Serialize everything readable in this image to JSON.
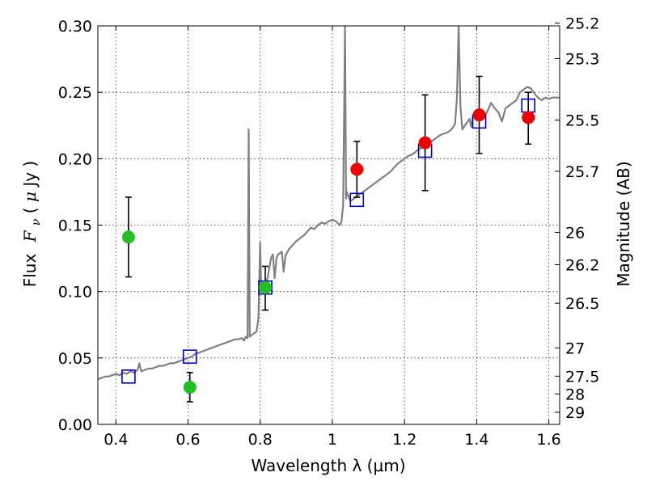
{
  "chart_data": {
    "type": "scatter",
    "x_range": [
      0.35,
      1.63
    ],
    "y_range": [
      0.0,
      0.3
    ],
    "grid": true,
    "x_ticks": [
      0.4,
      0.6,
      0.8,
      1.0,
      1.2,
      1.4,
      1.6
    ],
    "x_tick_labels": [
      "0.4",
      "0.6",
      "0.8",
      "1",
      "1.2",
      "1.4",
      "1.6"
    ],
    "y_ticks": [
      0.0,
      0.05,
      0.1,
      0.15,
      0.2,
      0.25,
      0.3
    ],
    "y_tick_labels": [
      "0.00",
      "0.05",
      "0.10",
      "0.15",
      "0.20",
      "0.25",
      "0.30"
    ],
    "mag_ticks": [
      "25.2",
      "25.3",
      "25.5",
      "25.7",
      "26",
      "26.2",
      "26.5",
      "27",
      "27.5",
      "28",
      "29"
    ],
    "xlabel": "Wavelength  λ (μm)",
    "ylabel_prefix": "Flux",
    "ylabel_math": "F",
    "ylabel_sub": "ν",
    "ylabel_unit_open": " ( ",
    "ylabel_unit_mu": "μ",
    "ylabel_unit_rest": "Jy )",
    "ylabel_right": "Magnitude (AB)",
    "colors": {
      "sed": "#808080",
      "green": "#22c022",
      "red": "#ee0000",
      "box": "#0000cc",
      "errorbar": "#000000"
    },
    "sed_model": [
      [
        0.35,
        0.034
      ],
      [
        0.36,
        0.035
      ],
      [
        0.37,
        0.036
      ],
      [
        0.38,
        0.036
      ],
      [
        0.39,
        0.037
      ],
      [
        0.4,
        0.038
      ],
      [
        0.41,
        0.037
      ],
      [
        0.42,
        0.039
      ],
      [
        0.43,
        0.038
      ],
      [
        0.44,
        0.04
      ],
      [
        0.45,
        0.039
      ],
      [
        0.46,
        0.041
      ],
      [
        0.465,
        0.046
      ],
      [
        0.47,
        0.04
      ],
      [
        0.48,
        0.041
      ],
      [
        0.49,
        0.042
      ],
      [
        0.5,
        0.042
      ],
      [
        0.51,
        0.043
      ],
      [
        0.52,
        0.044
      ],
      [
        0.53,
        0.044
      ],
      [
        0.54,
        0.045
      ],
      [
        0.55,
        0.046
      ],
      [
        0.56,
        0.046
      ],
      [
        0.57,
        0.047
      ],
      [
        0.58,
        0.048
      ],
      [
        0.59,
        0.049
      ],
      [
        0.6,
        0.05
      ],
      [
        0.61,
        0.051
      ],
      [
        0.62,
        0.053
      ],
      [
        0.63,
        0.054
      ],
      [
        0.64,
        0.055
      ],
      [
        0.65,
        0.056
      ],
      [
        0.66,
        0.057
      ],
      [
        0.67,
        0.058
      ],
      [
        0.68,
        0.059
      ],
      [
        0.69,
        0.06
      ],
      [
        0.7,
        0.061
      ],
      [
        0.71,
        0.062
      ],
      [
        0.72,
        0.063
      ],
      [
        0.73,
        0.064
      ],
      [
        0.74,
        0.064
      ],
      [
        0.75,
        0.065
      ],
      [
        0.755,
        0.063
      ],
      [
        0.76,
        0.066
      ],
      [
        0.765,
        0.065
      ],
      [
        0.768,
        0.222
      ],
      [
        0.771,
        0.066
      ],
      [
        0.78,
        0.068
      ],
      [
        0.79,
        0.07
      ],
      [
        0.795,
        0.08
      ],
      [
        0.8,
        0.137
      ],
      [
        0.803,
        0.1
      ],
      [
        0.81,
        0.103
      ],
      [
        0.82,
        0.11
      ],
      [
        0.83,
        0.125
      ],
      [
        0.835,
        0.128
      ],
      [
        0.84,
        0.11
      ],
      [
        0.845,
        0.125
      ],
      [
        0.85,
        0.128
      ],
      [
        0.86,
        0.13
      ],
      [
        0.865,
        0.115
      ],
      [
        0.87,
        0.127
      ],
      [
        0.88,
        0.132
      ],
      [
        0.89,
        0.135
      ],
      [
        0.9,
        0.138
      ],
      [
        0.91,
        0.14
      ],
      [
        0.92,
        0.142
      ],
      [
        0.93,
        0.145
      ],
      [
        0.94,
        0.148
      ],
      [
        0.95,
        0.147
      ],
      [
        0.96,
        0.15
      ],
      [
        0.97,
        0.152
      ],
      [
        0.98,
        0.151
      ],
      [
        0.99,
        0.153
      ],
      [
        1.0,
        0.154
      ],
      [
        1.01,
        0.153
      ],
      [
        1.02,
        0.15
      ],
      [
        1.025,
        0.152
      ],
      [
        1.03,
        0.165
      ],
      [
        1.035,
        0.3
      ],
      [
        1.038,
        0.17
      ],
      [
        1.04,
        0.175
      ],
      [
        1.05,
        0.168
      ],
      [
        1.06,
        0.17
      ],
      [
        1.07,
        0.172
      ],
      [
        1.08,
        0.174
      ],
      [
        1.09,
        0.176
      ],
      [
        1.1,
        0.178
      ],
      [
        1.11,
        0.18
      ],
      [
        1.12,
        0.182
      ],
      [
        1.13,
        0.184
      ],
      [
        1.14,
        0.186
      ],
      [
        1.15,
        0.188
      ],
      [
        1.16,
        0.19
      ],
      [
        1.17,
        0.193
      ],
      [
        1.18,
        0.196
      ],
      [
        1.19,
        0.198
      ],
      [
        1.2,
        0.2
      ],
      [
        1.21,
        0.202
      ],
      [
        1.22,
        0.203
      ],
      [
        1.23,
        0.205
      ],
      [
        1.24,
        0.207
      ],
      [
        1.25,
        0.209
      ],
      [
        1.26,
        0.211
      ],
      [
        1.27,
        0.212
      ],
      [
        1.28,
        0.214
      ],
      [
        1.29,
        0.216
      ],
      [
        1.3,
        0.218
      ],
      [
        1.31,
        0.219
      ],
      [
        1.32,
        0.22
      ],
      [
        1.33,
        0.222
      ],
      [
        1.34,
        0.226
      ],
      [
        1.345,
        0.245
      ],
      [
        1.35,
        0.3
      ],
      [
        1.355,
        0.24
      ],
      [
        1.36,
        0.222
      ],
      [
        1.37,
        0.226
      ],
      [
        1.38,
        0.23
      ],
      [
        1.385,
        0.224
      ],
      [
        1.39,
        0.232
      ],
      [
        1.4,
        0.234
      ],
      [
        1.41,
        0.236
      ],
      [
        1.42,
        0.231
      ],
      [
        1.43,
        0.236
      ],
      [
        1.44,
        0.242
      ],
      [
        1.45,
        0.238
      ],
      [
        1.46,
        0.235
      ],
      [
        1.47,
        0.228
      ],
      [
        1.48,
        0.238
      ],
      [
        1.49,
        0.24
      ],
      [
        1.5,
        0.242
      ],
      [
        1.51,
        0.244
      ],
      [
        1.52,
        0.25
      ],
      [
        1.53,
        0.252
      ],
      [
        1.54,
        0.254
      ],
      [
        1.55,
        0.253
      ],
      [
        1.56,
        0.249
      ],
      [
        1.57,
        0.246
      ],
      [
        1.58,
        0.244
      ],
      [
        1.59,
        0.246
      ],
      [
        1.6,
        0.245
      ],
      [
        1.61,
        0.246
      ],
      [
        1.63,
        0.246
      ]
    ],
    "observed_green": [
      {
        "x": 0.435,
        "y": 0.141,
        "err_low": 0.111,
        "err_high": 0.171
      },
      {
        "x": 0.605,
        "y": 0.028,
        "err_low": 0.017,
        "err_high": 0.039
      },
      {
        "x": 0.814,
        "y": 0.103,
        "err_low": 0.086,
        "err_high": 0.119
      }
    ],
    "observed_red": [
      {
        "x": 1.068,
        "y": 0.192,
        "err_low": 0.171,
        "err_high": 0.213
      },
      {
        "x": 1.257,
        "y": 0.212,
        "err_low": 0.176,
        "err_high": 0.248
      },
      {
        "x": 1.407,
        "y": 0.233,
        "err_low": 0.204,
        "err_high": 0.262
      },
      {
        "x": 1.543,
        "y": 0.231,
        "err_low": 0.211,
        "err_high": 0.25
      }
    ],
    "model_boxes": [
      {
        "x": 0.435,
        "y": 0.036
      },
      {
        "x": 0.605,
        "y": 0.051
      },
      {
        "x": 0.814,
        "y": 0.103
      },
      {
        "x": 1.068,
        "y": 0.169
      },
      {
        "x": 1.257,
        "y": 0.206
      },
      {
        "x": 1.407,
        "y": 0.228
      },
      {
        "x": 1.543,
        "y": 0.24
      }
    ]
  }
}
